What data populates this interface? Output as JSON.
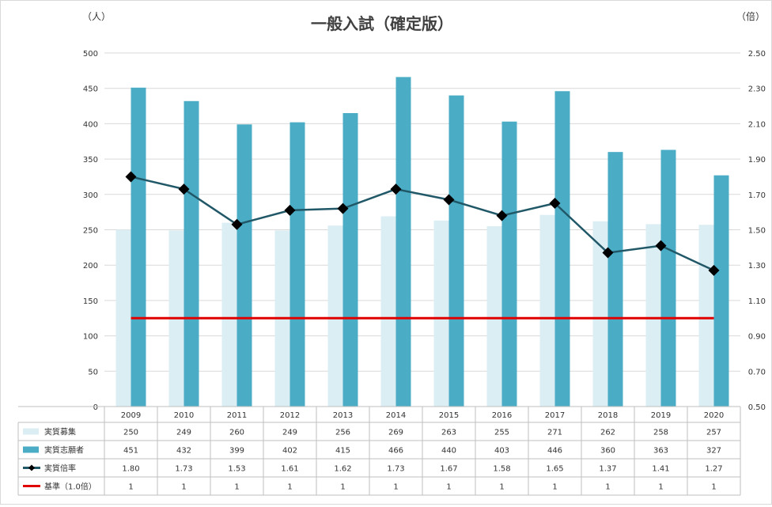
{
  "chart_data": {
    "type": "bar",
    "title": "一般入試（確定版）",
    "ylabel_left": "（人）",
    "ylabel_right": "（倍）",
    "categories": [
      "2009",
      "2010",
      "2011",
      "2012",
      "2013",
      "2014",
      "2015",
      "2016",
      "2017",
      "2018",
      "2019",
      "2020"
    ],
    "ylim_left": [
      0,
      500
    ],
    "ylim_right": [
      0.5,
      2.5
    ],
    "yticks_left": [
      "0",
      "50",
      "100",
      "150",
      "200",
      "250",
      "300",
      "350",
      "400",
      "450",
      "500"
    ],
    "yticks_right": [
      "0.50",
      "0.70",
      "0.90",
      "1.10",
      "1.30",
      "1.50",
      "1.70",
      "1.90",
      "2.10",
      "2.30",
      "2.50"
    ],
    "grid": true,
    "series": [
      {
        "name": "実質募集",
        "kind": "bar",
        "axis": "left",
        "color": "#dbeef4",
        "values": [
          250,
          249,
          260,
          249,
          256,
          269,
          263,
          255,
          271,
          262,
          258,
          257
        ],
        "labels": [
          "250",
          "249",
          "260",
          "249",
          "256",
          "269",
          "263",
          "255",
          "271",
          "262",
          "258",
          "257"
        ]
      },
      {
        "name": "実質志願者",
        "kind": "bar",
        "axis": "left",
        "color": "#4bacc6",
        "values": [
          451,
          432,
          399,
          402,
          415,
          466,
          440,
          403,
          446,
          360,
          363,
          327
        ],
        "labels": [
          "451",
          "432",
          "399",
          "402",
          "415",
          "466",
          "440",
          "403",
          "446",
          "360",
          "363",
          "327"
        ]
      },
      {
        "name": "実質倍率",
        "kind": "line",
        "axis": "right",
        "color": "#215868",
        "marker": "diamond",
        "values": [
          1.8,
          1.73,
          1.53,
          1.61,
          1.62,
          1.73,
          1.67,
          1.58,
          1.65,
          1.37,
          1.41,
          1.27
        ],
        "labels": [
          "1.80",
          "1.73",
          "1.53",
          "1.61",
          "1.62",
          "1.73",
          "1.67",
          "1.58",
          "1.65",
          "1.37",
          "1.41",
          "1.27"
        ]
      },
      {
        "name": "基準（1.0倍）",
        "kind": "line",
        "axis": "right",
        "color": "#e00000",
        "values": [
          1,
          1,
          1,
          1,
          1,
          1,
          1,
          1,
          1,
          1,
          1,
          1
        ],
        "labels": [
          "1",
          "1",
          "1",
          "1",
          "1",
          "1",
          "1",
          "1",
          "1",
          "1",
          "1",
          "1"
        ]
      }
    ]
  }
}
